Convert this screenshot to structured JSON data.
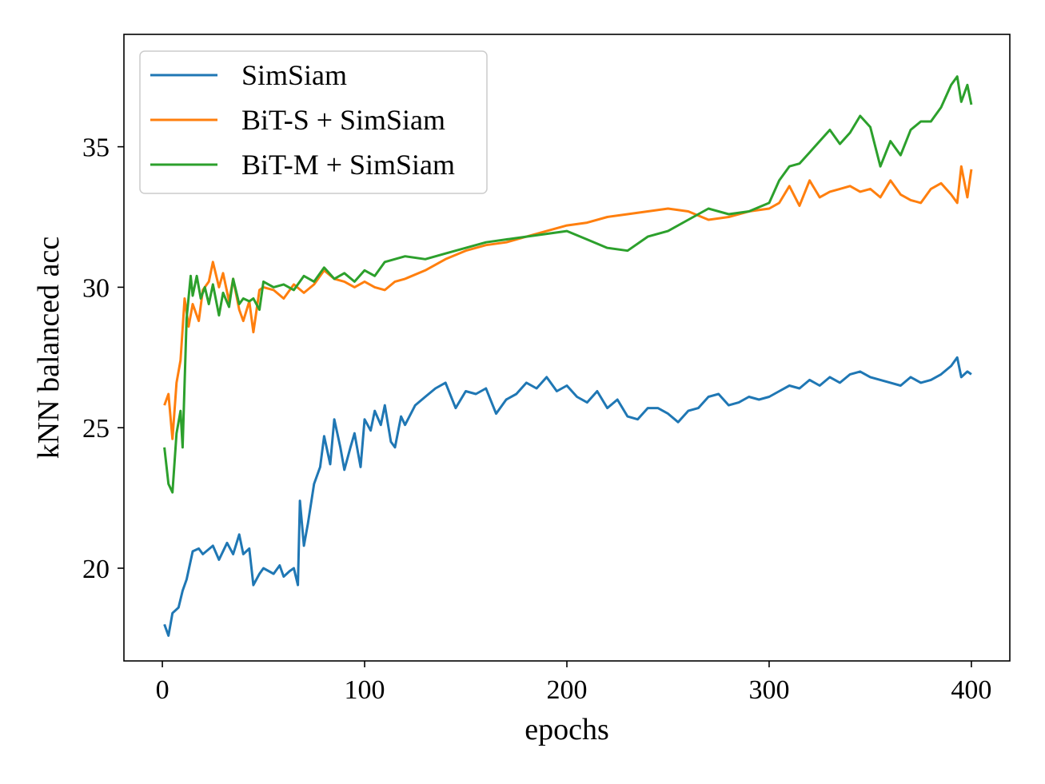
{
  "chart_data": {
    "type": "line",
    "title": "",
    "xlabel": "epochs",
    "ylabel": "kNN balanced acc",
    "xlim": [
      -19,
      419
    ],
    "ylim": [
      16.7,
      39
    ],
    "xticks": [
      0,
      100,
      200,
      300,
      400
    ],
    "xtick_labels": [
      "0",
      "100",
      "200",
      "300",
      "400"
    ],
    "yticks": [
      20,
      25,
      30,
      35
    ],
    "ytick_labels": [
      "20",
      "25",
      "30",
      "35"
    ],
    "grid": false,
    "legend_position": "upper-left",
    "series": [
      {
        "name": "SimSiam",
        "color": "#1f77b4",
        "x": [
          1,
          3,
          5,
          8,
          10,
          12,
          15,
          18,
          20,
          25,
          28,
          32,
          35,
          38,
          40,
          43,
          45,
          48,
          50,
          55,
          58,
          60,
          63,
          65,
          67,
          68,
          70,
          72,
          75,
          78,
          80,
          83,
          85,
          88,
          90,
          93,
          95,
          98,
          100,
          103,
          105,
          108,
          110,
          113,
          115,
          118,
          120,
          125,
          130,
          135,
          140,
          145,
          150,
          155,
          160,
          165,
          170,
          175,
          180,
          185,
          190,
          195,
          200,
          205,
          210,
          215,
          220,
          225,
          230,
          235,
          240,
          245,
          250,
          255,
          260,
          265,
          270,
          275,
          280,
          285,
          290,
          295,
          300,
          305,
          310,
          315,
          320,
          325,
          330,
          335,
          340,
          345,
          350,
          355,
          360,
          365,
          370,
          375,
          380,
          385,
          390,
          393,
          395,
          398,
          400
        ],
        "values": [
          18.0,
          17.6,
          18.4,
          18.6,
          19.2,
          19.6,
          20.6,
          20.7,
          20.5,
          20.8,
          20.3,
          20.9,
          20.5,
          21.2,
          20.5,
          20.7,
          19.4,
          19.8,
          20.0,
          19.8,
          20.1,
          19.7,
          19.9,
          20.0,
          19.4,
          22.4,
          20.8,
          21.6,
          23.0,
          23.6,
          24.7,
          23.7,
          25.3,
          24.3,
          23.5,
          24.3,
          24.8,
          23.6,
          25.3,
          24.9,
          25.6,
          25.1,
          25.8,
          24.5,
          24.3,
          25.4,
          25.1,
          25.8,
          26.1,
          26.4,
          26.6,
          25.7,
          26.3,
          26.2,
          26.4,
          25.5,
          26.0,
          26.2,
          26.6,
          26.4,
          26.8,
          26.3,
          26.5,
          26.1,
          25.9,
          26.3,
          25.7,
          26.0,
          25.4,
          25.3,
          25.7,
          25.7,
          25.5,
          25.2,
          25.6,
          25.7,
          26.1,
          26.2,
          25.8,
          25.9,
          26.1,
          26.0,
          26.1,
          26.3,
          26.5,
          26.4,
          26.7,
          26.5,
          26.8,
          26.6,
          26.9,
          27.0,
          26.8,
          26.7,
          26.6,
          26.5,
          26.8,
          26.6,
          26.7,
          26.9,
          27.2,
          27.5,
          26.8,
          27.0,
          26.9
        ]
      },
      {
        "name": "BiT-S + SimSiam",
        "color": "#ff7f0e",
        "x": [
          1,
          3,
          5,
          7,
          9,
          11,
          13,
          15,
          18,
          20,
          23,
          25,
          28,
          30,
          33,
          35,
          38,
          40,
          43,
          45,
          48,
          50,
          55,
          60,
          65,
          70,
          75,
          80,
          85,
          90,
          95,
          100,
          105,
          110,
          115,
          120,
          130,
          140,
          150,
          160,
          170,
          180,
          190,
          200,
          210,
          220,
          230,
          240,
          250,
          260,
          270,
          280,
          290,
          300,
          305,
          310,
          315,
          320,
          325,
          330,
          335,
          340,
          345,
          350,
          355,
          360,
          365,
          370,
          375,
          380,
          385,
          390,
          393,
          395,
          398,
          400
        ],
        "values": [
          25.8,
          26.2,
          24.6,
          26.6,
          27.4,
          29.6,
          28.6,
          29.4,
          28.8,
          29.9,
          30.2,
          30.9,
          30.0,
          30.5,
          29.5,
          30.3,
          29.2,
          28.8,
          29.5,
          28.4,
          29.9,
          30.0,
          29.9,
          29.6,
          30.1,
          29.8,
          30.1,
          30.6,
          30.3,
          30.2,
          30.0,
          30.2,
          30.0,
          29.9,
          30.2,
          30.3,
          30.6,
          31.0,
          31.3,
          31.5,
          31.6,
          31.8,
          32.0,
          32.2,
          32.3,
          32.5,
          32.6,
          32.7,
          32.8,
          32.7,
          32.4,
          32.5,
          32.7,
          32.8,
          33.0,
          33.6,
          32.9,
          33.8,
          33.2,
          33.4,
          33.5,
          33.6,
          33.4,
          33.5,
          33.2,
          33.8,
          33.3,
          33.1,
          33.0,
          33.5,
          33.7,
          33.3,
          33.0,
          34.3,
          33.2,
          34.2
        ]
      },
      {
        "name": "BiT-M + SimSiam",
        "color": "#2ca02c",
        "x": [
          1,
          3,
          5,
          7,
          9,
          10,
          12,
          14,
          15,
          17,
          19,
          21,
          23,
          25,
          28,
          30,
          33,
          35,
          38,
          40,
          43,
          45,
          48,
          50,
          55,
          60,
          65,
          70,
          75,
          80,
          85,
          90,
          95,
          100,
          105,
          110,
          120,
          130,
          140,
          150,
          160,
          170,
          180,
          190,
          200,
          210,
          220,
          230,
          240,
          250,
          260,
          270,
          280,
          290,
          300,
          305,
          310,
          315,
          320,
          325,
          330,
          335,
          340,
          345,
          350,
          355,
          360,
          365,
          370,
          375,
          380,
          385,
          390,
          393,
          395,
          398,
          400
        ],
        "values": [
          24.3,
          23.0,
          22.7,
          24.8,
          25.6,
          24.3,
          28.9,
          30.4,
          29.7,
          30.4,
          29.6,
          30.0,
          29.4,
          30.1,
          29.0,
          29.8,
          29.3,
          30.3,
          29.4,
          29.6,
          29.5,
          29.6,
          29.2,
          30.2,
          30.0,
          30.1,
          29.9,
          30.4,
          30.2,
          30.7,
          30.3,
          30.5,
          30.2,
          30.6,
          30.4,
          30.9,
          31.1,
          31.0,
          31.2,
          31.4,
          31.6,
          31.7,
          31.8,
          31.9,
          32.0,
          31.7,
          31.4,
          31.3,
          31.8,
          32.0,
          32.4,
          32.8,
          32.6,
          32.7,
          33.0,
          33.8,
          34.3,
          34.4,
          34.8,
          35.2,
          35.6,
          35.1,
          35.5,
          36.1,
          35.7,
          34.3,
          35.2,
          34.7,
          35.6,
          35.9,
          35.9,
          36.4,
          37.2,
          37.5,
          36.6,
          37.2,
          36.5
        ]
      }
    ]
  }
}
